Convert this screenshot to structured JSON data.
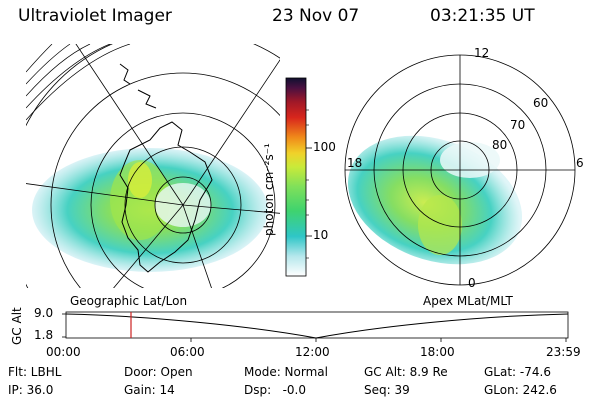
{
  "header": {
    "instrument": "Ultraviolet Imager",
    "date": "23 Nov 07",
    "time": "03:21:35 UT"
  },
  "left_map": {
    "caption": "Geographic Lat/Lon"
  },
  "right_map": {
    "caption": "Apex MLat/MLT",
    "lat_labels": [
      "80",
      "70",
      "60"
    ],
    "mlt_labels": {
      "top": "12",
      "left": "18",
      "right": "6",
      "bottom": "0"
    }
  },
  "colorbar": {
    "unit_label": "photon cm⁻²s⁻¹",
    "tick_labels": [
      "100",
      "10"
    ]
  },
  "altitude_plot": {
    "ylabel": "GC Alt",
    "y_ticks": [
      "9.0",
      "1.8"
    ],
    "x_ticks": [
      "00:00",
      "06:00",
      "12:00",
      "18:00",
      "23:59"
    ]
  },
  "info": {
    "row1": {
      "filter": "Flt: LBHL",
      "door": "Door: Open",
      "mode": "Mode: Normal",
      "gc_alt": "GC Alt: 8.9 Re",
      "glat": "GLat: -74.6"
    },
    "row2": {
      "ip": "IP: 36.0",
      "gain": "Gain: 14",
      "dsp": "Dsp:   -0.0",
      "seq": "Seq: 39",
      "glon": "GLon: 242.6"
    }
  },
  "colors": {
    "aurora_green": "#7fe35a",
    "aurora_cyan": "#3fd0c8",
    "aurora_yellow": "#d9ef3a",
    "marker": "#cc2222"
  }
}
